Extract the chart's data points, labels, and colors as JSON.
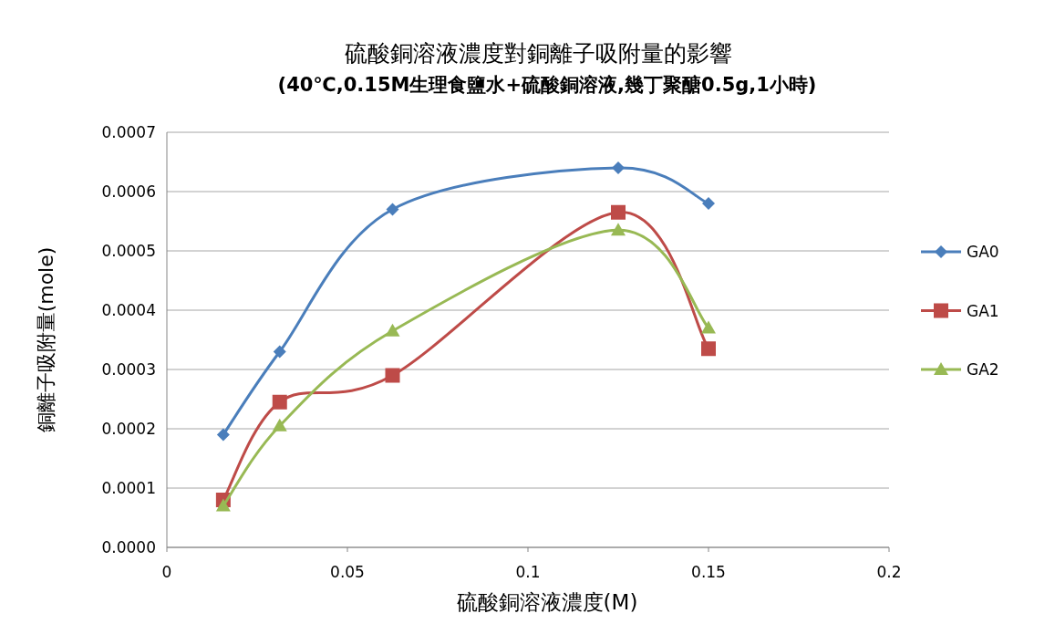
{
  "chart_data": {
    "type": "line",
    "title": "硫酸銅溶液濃度對銅離子吸附量的影響",
    "subtitle": "(40℃,0.15M生理食鹽水+硫酸銅溶液,幾丁聚醣0.5g,1小時)",
    "xlabel": "硫酸銅溶液濃度(M)",
    "ylabel": "銅離子吸附量(mole)",
    "x": [
      0.015625,
      0.03125,
      0.0625,
      0.125,
      0.15
    ],
    "series": [
      {
        "name": "GA0",
        "color": "#4a7ebb",
        "marker": "diamond",
        "values": [
          0.00019,
          0.00033,
          0.00057,
          0.00064,
          0.00058
        ]
      },
      {
        "name": "GA1",
        "color": "#be4b48",
        "marker": "square",
        "values": [
          8e-05,
          0.000245,
          0.00029,
          0.000565,
          0.000335
        ]
      },
      {
        "name": "GA2",
        "color": "#98b954",
        "marker": "triangle",
        "values": [
          7e-05,
          0.000205,
          0.000365,
          0.000535,
          0.00037
        ]
      }
    ],
    "xlim": [
      0,
      0.2
    ],
    "xticks": [
      0,
      0.05,
      0.1,
      0.15,
      0.2
    ],
    "ylim": [
      0,
      0.0007
    ],
    "yticks": [
      {
        "value": 0,
        "label": "0.0000"
      },
      {
        "value": 0.0001,
        "label": "0.0001"
      },
      {
        "value": 0.0002,
        "label": "0.0002"
      },
      {
        "value": 0.0003,
        "label": "0.0003"
      },
      {
        "value": 0.0004,
        "label": "0.0004"
      },
      {
        "value": 0.0005,
        "label": "0.0005"
      },
      {
        "value": 0.0006,
        "label": "0.0006"
      },
      {
        "value": 0.0007,
        "label": "0.0007"
      }
    ],
    "grid": "y",
    "legend": "right",
    "line_style": "solid"
  }
}
